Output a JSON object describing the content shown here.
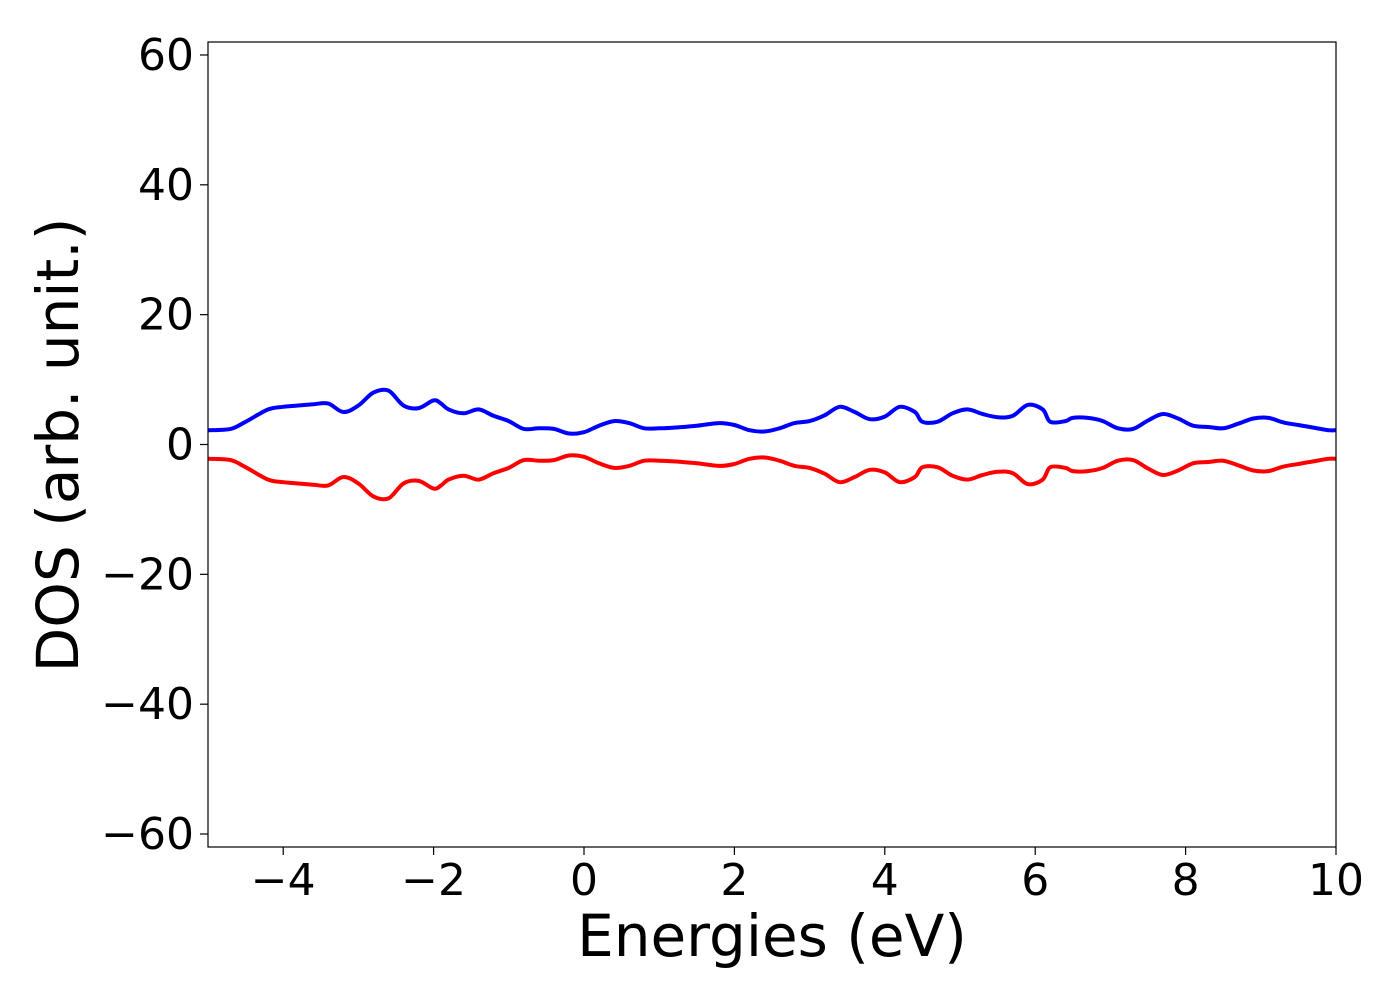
{
  "chart_data": {
    "type": "line",
    "title": "",
    "xlabel": "Energies (eV)",
    "ylabel": "DOS (arb. unit.)",
    "xlim": [
      -5,
      10
    ],
    "ylim": [
      -62,
      62
    ],
    "xticks": [
      -4,
      -2,
      0,
      2,
      4,
      6,
      8,
      10
    ],
    "xtick_labels": [
      "−4",
      "−2",
      "0",
      "2",
      "4",
      "6",
      "8",
      "10"
    ],
    "yticks": [
      -60,
      -40,
      -20,
      0,
      20,
      40,
      60
    ],
    "ytick_labels": [
      "−60",
      "−40",
      "−20",
      "0",
      "20",
      "40",
      "60"
    ],
    "grid": false,
    "series": [
      {
        "color": "#0000ff",
        "x": [
          -5.0,
          -4.7,
          -4.5,
          -4.2,
          -4.0,
          -3.8,
          -3.6,
          -3.4,
          -3.2,
          -3.0,
          -2.8,
          -2.6,
          -2.4,
          -2.2,
          -2.0,
          -1.9,
          -1.8,
          -1.6,
          -1.4,
          -1.2,
          -1.0,
          -0.8,
          -0.6,
          -0.4,
          -0.2,
          0.0,
          0.2,
          0.4,
          0.6,
          0.8,
          1.0,
          1.2,
          1.5,
          1.8,
          2.0,
          2.2,
          2.4,
          2.6,
          2.8,
          3.0,
          3.2,
          3.4,
          3.6,
          3.8,
          4.0,
          4.2,
          4.4,
          4.5,
          4.7,
          4.9,
          5.1,
          5.3,
          5.5,
          5.7,
          5.9,
          6.1,
          6.2,
          6.4,
          6.5,
          6.7,
          6.9,
          7.1,
          7.3,
          7.5,
          7.7,
          7.9,
          8.1,
          8.3,
          8.5,
          8.7,
          8.9,
          9.1,
          9.3,
          9.5,
          9.7,
          9.9,
          10.0
        ],
        "y": [
          2.2,
          2.4,
          3.5,
          5.4,
          5.8,
          6.0,
          6.2,
          6.3,
          5.0,
          6.0,
          8.0,
          8.3,
          6.0,
          5.6,
          6.8,
          6.3,
          5.4,
          4.8,
          5.4,
          4.4,
          3.6,
          2.4,
          2.5,
          2.4,
          1.7,
          1.9,
          2.9,
          3.6,
          3.3,
          2.5,
          2.5,
          2.6,
          2.9,
          3.3,
          3.0,
          2.2,
          2.0,
          2.5,
          3.3,
          3.6,
          4.5,
          5.8,
          5.0,
          3.9,
          4.3,
          5.8,
          5.0,
          3.5,
          3.5,
          4.8,
          5.4,
          4.7,
          4.2,
          4.4,
          6.1,
          5.4,
          3.5,
          3.6,
          4.1,
          4.1,
          3.6,
          2.5,
          2.4,
          3.7,
          4.7,
          4.0,
          2.9,
          2.7,
          2.5,
          3.2,
          4.0,
          4.1,
          3.4,
          3.0,
          2.6,
          2.2,
          2.2
        ]
      },
      {
        "color": "#ff0000",
        "x": [
          -5.0,
          -4.7,
          -4.5,
          -4.2,
          -4.0,
          -3.8,
          -3.6,
          -3.4,
          -3.2,
          -3.0,
          -2.8,
          -2.6,
          -2.4,
          -2.2,
          -2.0,
          -1.9,
          -1.8,
          -1.6,
          -1.4,
          -1.2,
          -1.0,
          -0.8,
          -0.6,
          -0.4,
          -0.2,
          0.0,
          0.2,
          0.4,
          0.6,
          0.8,
          1.0,
          1.2,
          1.5,
          1.8,
          2.0,
          2.2,
          2.4,
          2.6,
          2.8,
          3.0,
          3.2,
          3.4,
          3.6,
          3.8,
          4.0,
          4.2,
          4.4,
          4.5,
          4.7,
          4.9,
          5.1,
          5.3,
          5.5,
          5.7,
          5.9,
          6.1,
          6.2,
          6.4,
          6.5,
          6.7,
          6.9,
          7.1,
          7.3,
          7.5,
          7.7,
          7.9,
          8.1,
          8.3,
          8.5,
          8.7,
          8.9,
          9.1,
          9.3,
          9.5,
          9.7,
          9.9,
          10.0
        ],
        "y": [
          -2.2,
          -2.4,
          -3.5,
          -5.4,
          -5.8,
          -6.0,
          -6.2,
          -6.3,
          -5.0,
          -6.0,
          -8.0,
          -8.3,
          -6.0,
          -5.6,
          -6.8,
          -6.3,
          -5.4,
          -4.8,
          -5.4,
          -4.4,
          -3.6,
          -2.4,
          -2.5,
          -2.4,
          -1.7,
          -1.9,
          -2.9,
          -3.6,
          -3.3,
          -2.5,
          -2.5,
          -2.6,
          -2.9,
          -3.3,
          -3.0,
          -2.2,
          -2.0,
          -2.5,
          -3.3,
          -3.6,
          -4.5,
          -5.8,
          -5.0,
          -3.9,
          -4.3,
          -5.8,
          -5.0,
          -3.5,
          -3.5,
          -4.8,
          -5.4,
          -4.7,
          -4.2,
          -4.4,
          -6.1,
          -5.4,
          -3.5,
          -3.6,
          -4.1,
          -4.1,
          -3.6,
          -2.5,
          -2.4,
          -3.7,
          -4.7,
          -4.0,
          -2.9,
          -2.7,
          -2.5,
          -3.2,
          -4.0,
          -4.1,
          -3.4,
          -3.0,
          -2.6,
          -2.2,
          -2.2
        ]
      }
    ]
  }
}
